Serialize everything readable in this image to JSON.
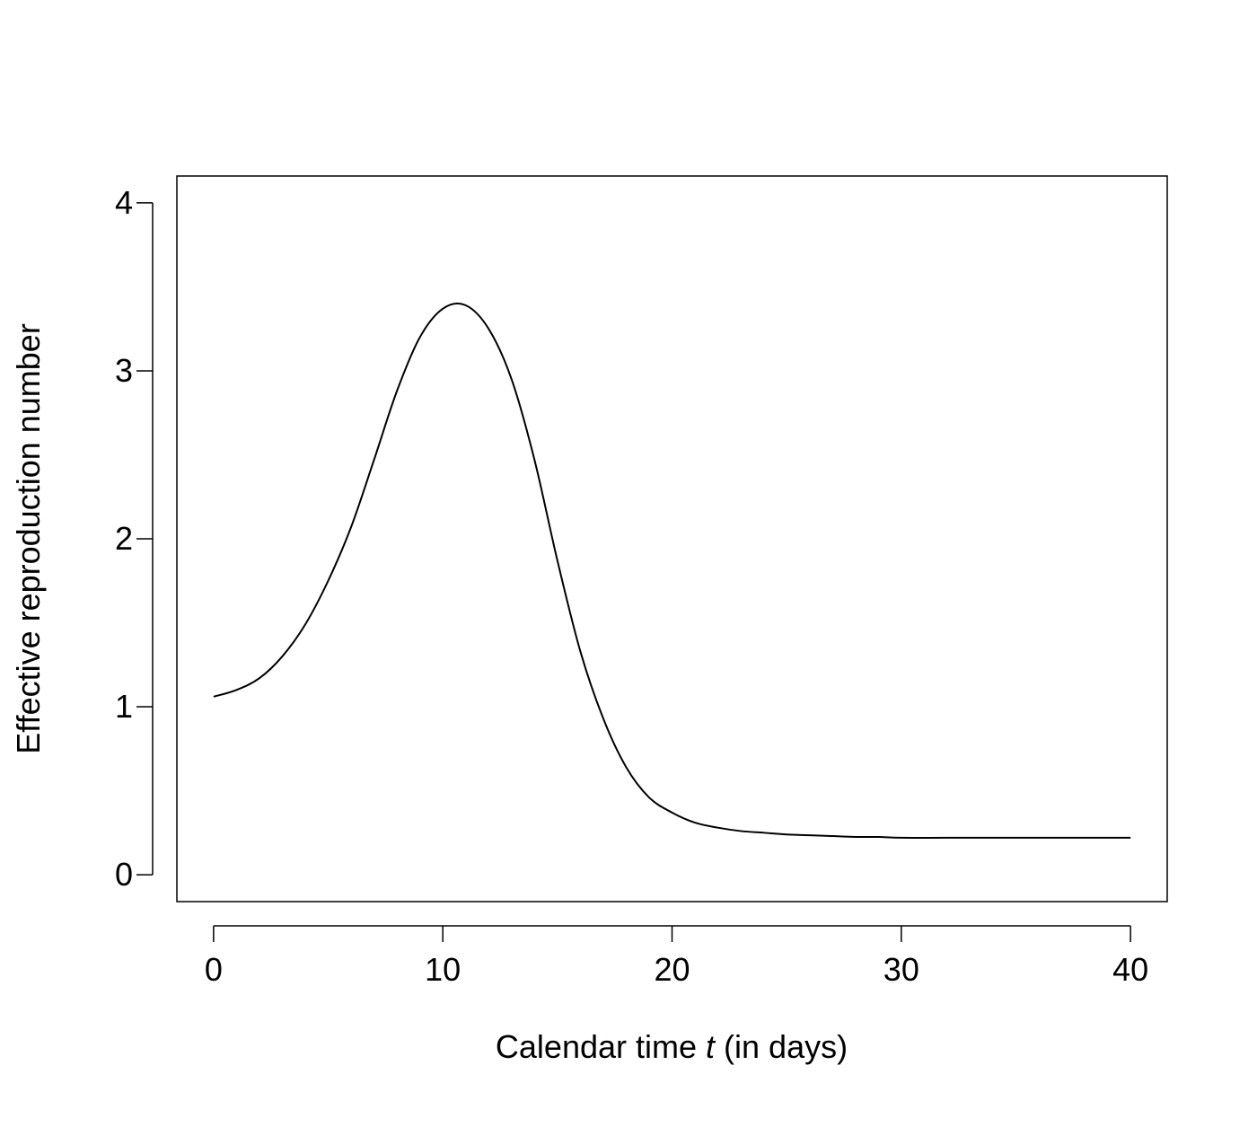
{
  "chart_data": {
    "type": "line",
    "title": "",
    "xlabel": {
      "prefix": "Calendar time ",
      "variable": "t",
      "suffix": " (in days)"
    },
    "ylabel": "Effective reproduction number",
    "xlim": [
      -1.6,
      41.6
    ],
    "ylim": [
      -0.16,
      4.16
    ],
    "xticks": [
      0,
      10,
      20,
      30,
      40
    ],
    "yticks": [
      0,
      1,
      2,
      3,
      4
    ],
    "grid": false,
    "legend": "none",
    "line_color": "#000000",
    "series": [
      {
        "x": [
          0,
          1,
          2,
          3,
          4,
          5,
          6,
          7,
          8,
          9,
          10,
          11,
          12,
          13,
          14,
          15,
          16,
          17,
          18,
          19,
          20,
          21,
          22,
          23,
          24,
          25,
          26,
          27,
          28,
          29,
          30,
          32,
          34,
          36,
          38,
          40
        ],
        "values": [
          1.06,
          1.1,
          1.17,
          1.3,
          1.49,
          1.75,
          2.07,
          2.47,
          2.88,
          3.2,
          3.37,
          3.39,
          3.25,
          2.95,
          2.47,
          1.87,
          1.33,
          0.93,
          0.64,
          0.46,
          0.37,
          0.31,
          0.28,
          0.26,
          0.25,
          0.24,
          0.235,
          0.23,
          0.225,
          0.225,
          0.22,
          0.22,
          0.22,
          0.22,
          0.22,
          0.22
        ]
      }
    ]
  }
}
